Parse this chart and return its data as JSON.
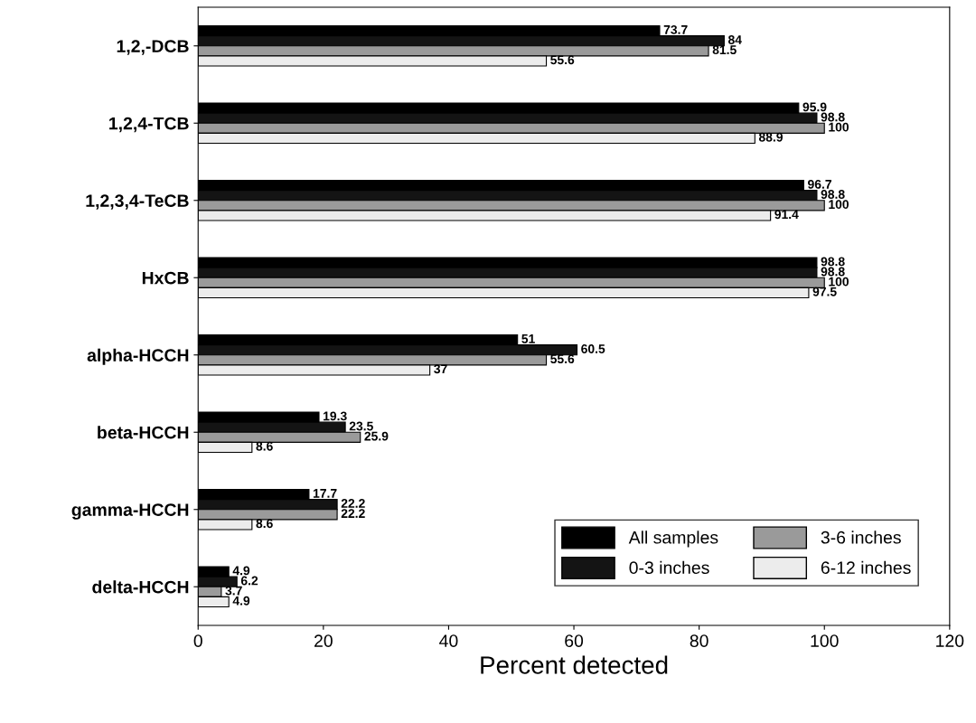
{
  "chart_data": {
    "type": "bar",
    "orientation": "horizontal",
    "xlabel": "Percent detected",
    "categories": [
      "1,2,-DCB",
      "1,2,4-TCB",
      "1,2,3,4-TeCB",
      "HxCB",
      "alpha-HCCH",
      "beta-HCCH",
      "gamma-HCCH",
      "delta-HCCH"
    ],
    "series": [
      {
        "name": "All samples",
        "color": "#000000",
        "values": [
          73.7,
          95.9,
          96.7,
          98.8,
          51,
          19.3,
          17.7,
          4.9
        ]
      },
      {
        "name": "0-3 inches",
        "color": "#141414",
        "values": [
          84,
          98.8,
          98.8,
          98.8,
          60.5,
          23.5,
          22.2,
          6.2
        ]
      },
      {
        "name": "3-6 inches",
        "color": "#9a9a9a",
        "values": [
          81.5,
          100,
          100,
          100,
          55.6,
          25.9,
          22.2,
          3.7
        ]
      },
      {
        "name": "6-12 inches",
        "color": "#ececec",
        "values": [
          55.6,
          88.9,
          91.4,
          97.5,
          37,
          8.6,
          8.6,
          4.9
        ]
      }
    ],
    "xlim": [
      0,
      120
    ],
    "xticks": [
      0,
      20,
      40,
      60,
      80,
      100,
      120
    ],
    "data_labels": true,
    "legend": "bottom right",
    "grid": false
  }
}
